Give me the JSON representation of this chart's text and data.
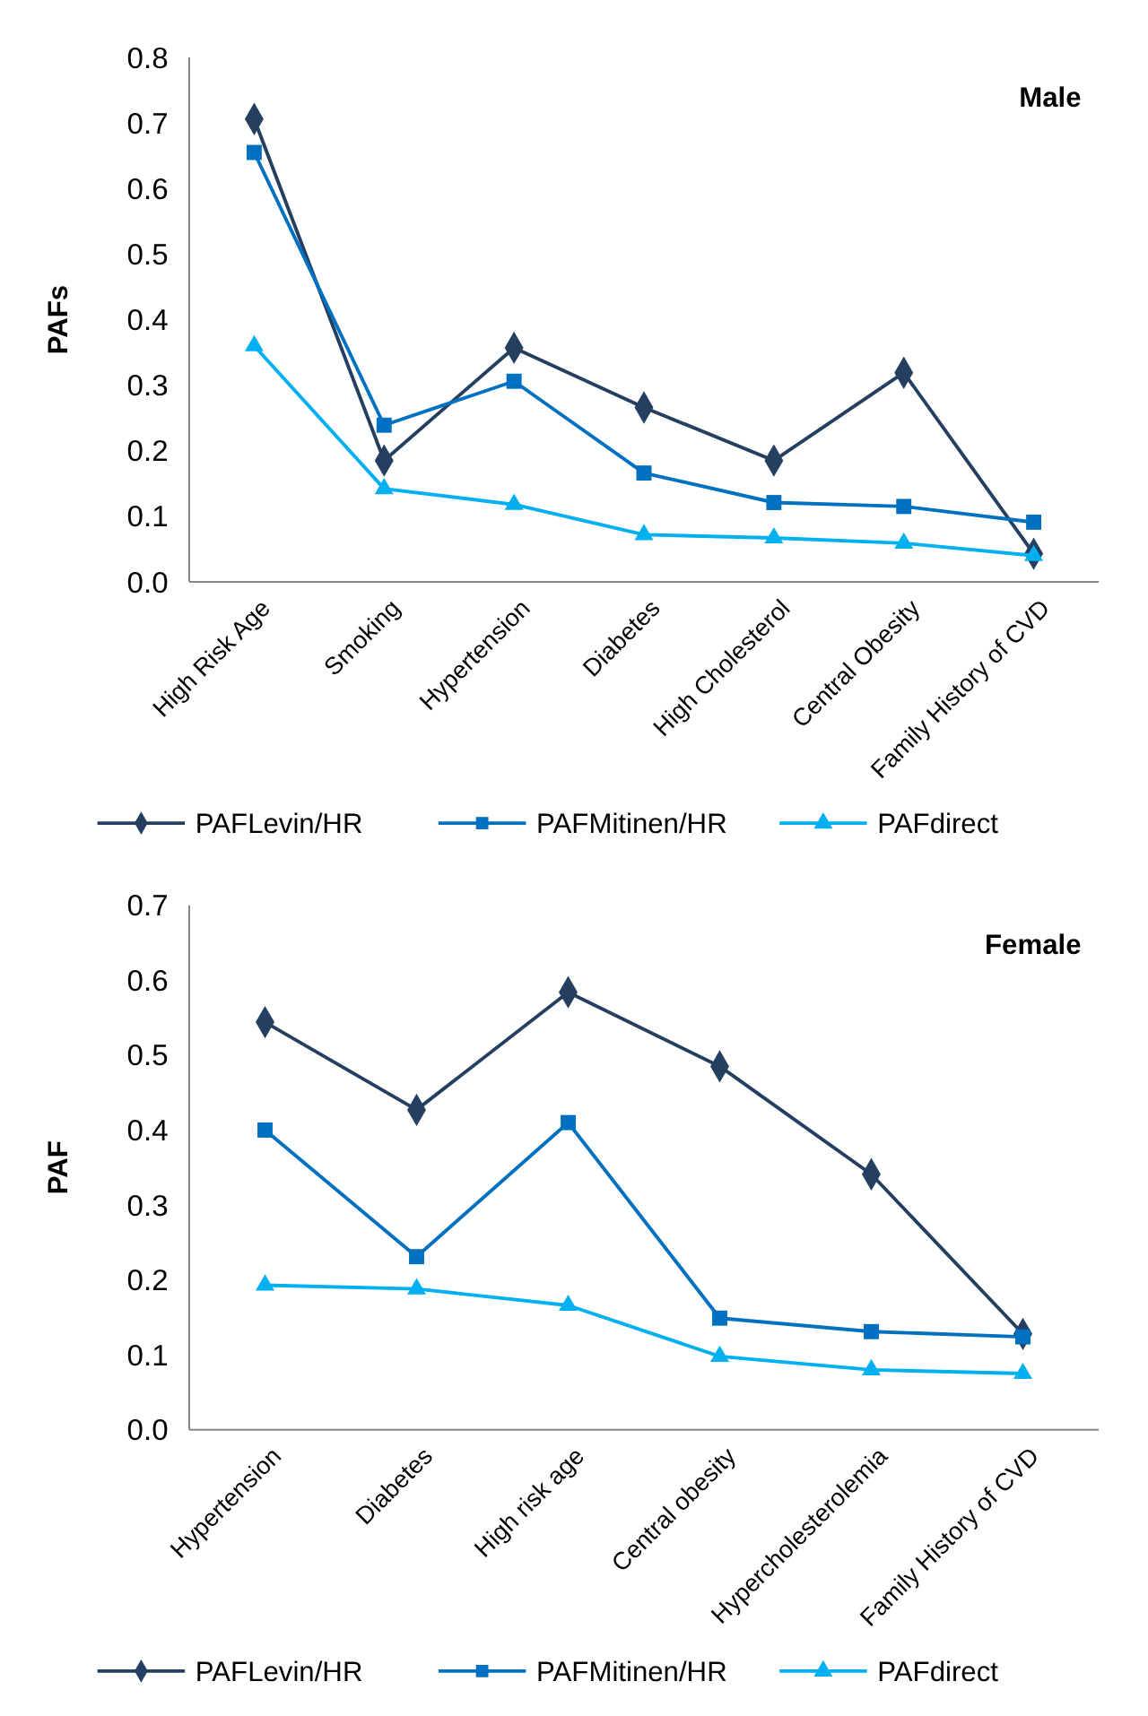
{
  "chart_data": [
    {
      "type": "line",
      "title": "Male",
      "ylabel": "PAFs",
      "categories": [
        "High Risk Age",
        "Smoking",
        "Hypertension",
        "Diabetes",
        "High Cholesterol",
        "Central Obesity",
        "Family History of CVD"
      ],
      "ylim": [
        0,
        0.8
      ],
      "yticks": [
        {
          "value": 0,
          "label": "0.0"
        },
        0.1,
        0.2,
        0.3,
        0.4,
        0.5,
        0.6,
        0.7,
        0.8
      ],
      "legend": "bottom",
      "grid": false,
      "series": [
        {
          "name": "PAFLevin/HR",
          "color": "#243f60",
          "marker": "diamond",
          "values": [
            0.706,
            0.185,
            0.357,
            0.266,
            0.185,
            0.319,
            0.043
          ]
        },
        {
          "name": "PAFMitinen/HR",
          "color": "#0070c0",
          "marker": "square",
          "values": [
            0.655,
            0.239,
            0.306,
            0.166,
            0.121,
            0.115,
            0.091
          ]
        },
        {
          "name": "PAFdirect",
          "color": "#00b0f0",
          "marker": "triangle",
          "values": [
            0.36,
            0.142,
            0.118,
            0.072,
            0.067,
            0.059,
            0.04
          ]
        }
      ]
    },
    {
      "type": "line",
      "title": "Female",
      "ylabel": "PAF",
      "categories": [
        "Hypertension",
        "Diabetes",
        "High risk age",
        "Central obesity",
        "Hypercholesterolemia",
        "Family History of  CVD"
      ],
      "ylim": [
        0,
        0.7
      ],
      "yticks": [
        {
          "value": 0,
          "label": "0.0"
        },
        0.1,
        0.2,
        0.3,
        0.4,
        0.5,
        0.6,
        0.7
      ],
      "legend": "bottom",
      "grid": false,
      "series": [
        {
          "name": "PAFLevin/HR",
          "color": "#243f60",
          "marker": "diamond",
          "values": [
            0.544,
            0.427,
            0.584,
            0.485,
            0.341,
            0.128
          ]
        },
        {
          "name": "PAFMitinen/HR",
          "color": "#0070c0",
          "marker": "square",
          "values": [
            0.4,
            0.231,
            0.41,
            0.149,
            0.131,
            0.124
          ]
        },
        {
          "name": "PAFdirect",
          "color": "#00b0f0",
          "marker": "triangle",
          "values": [
            0.193,
            0.188,
            0.166,
            0.098,
            0.08,
            0.075
          ]
        }
      ]
    }
  ]
}
